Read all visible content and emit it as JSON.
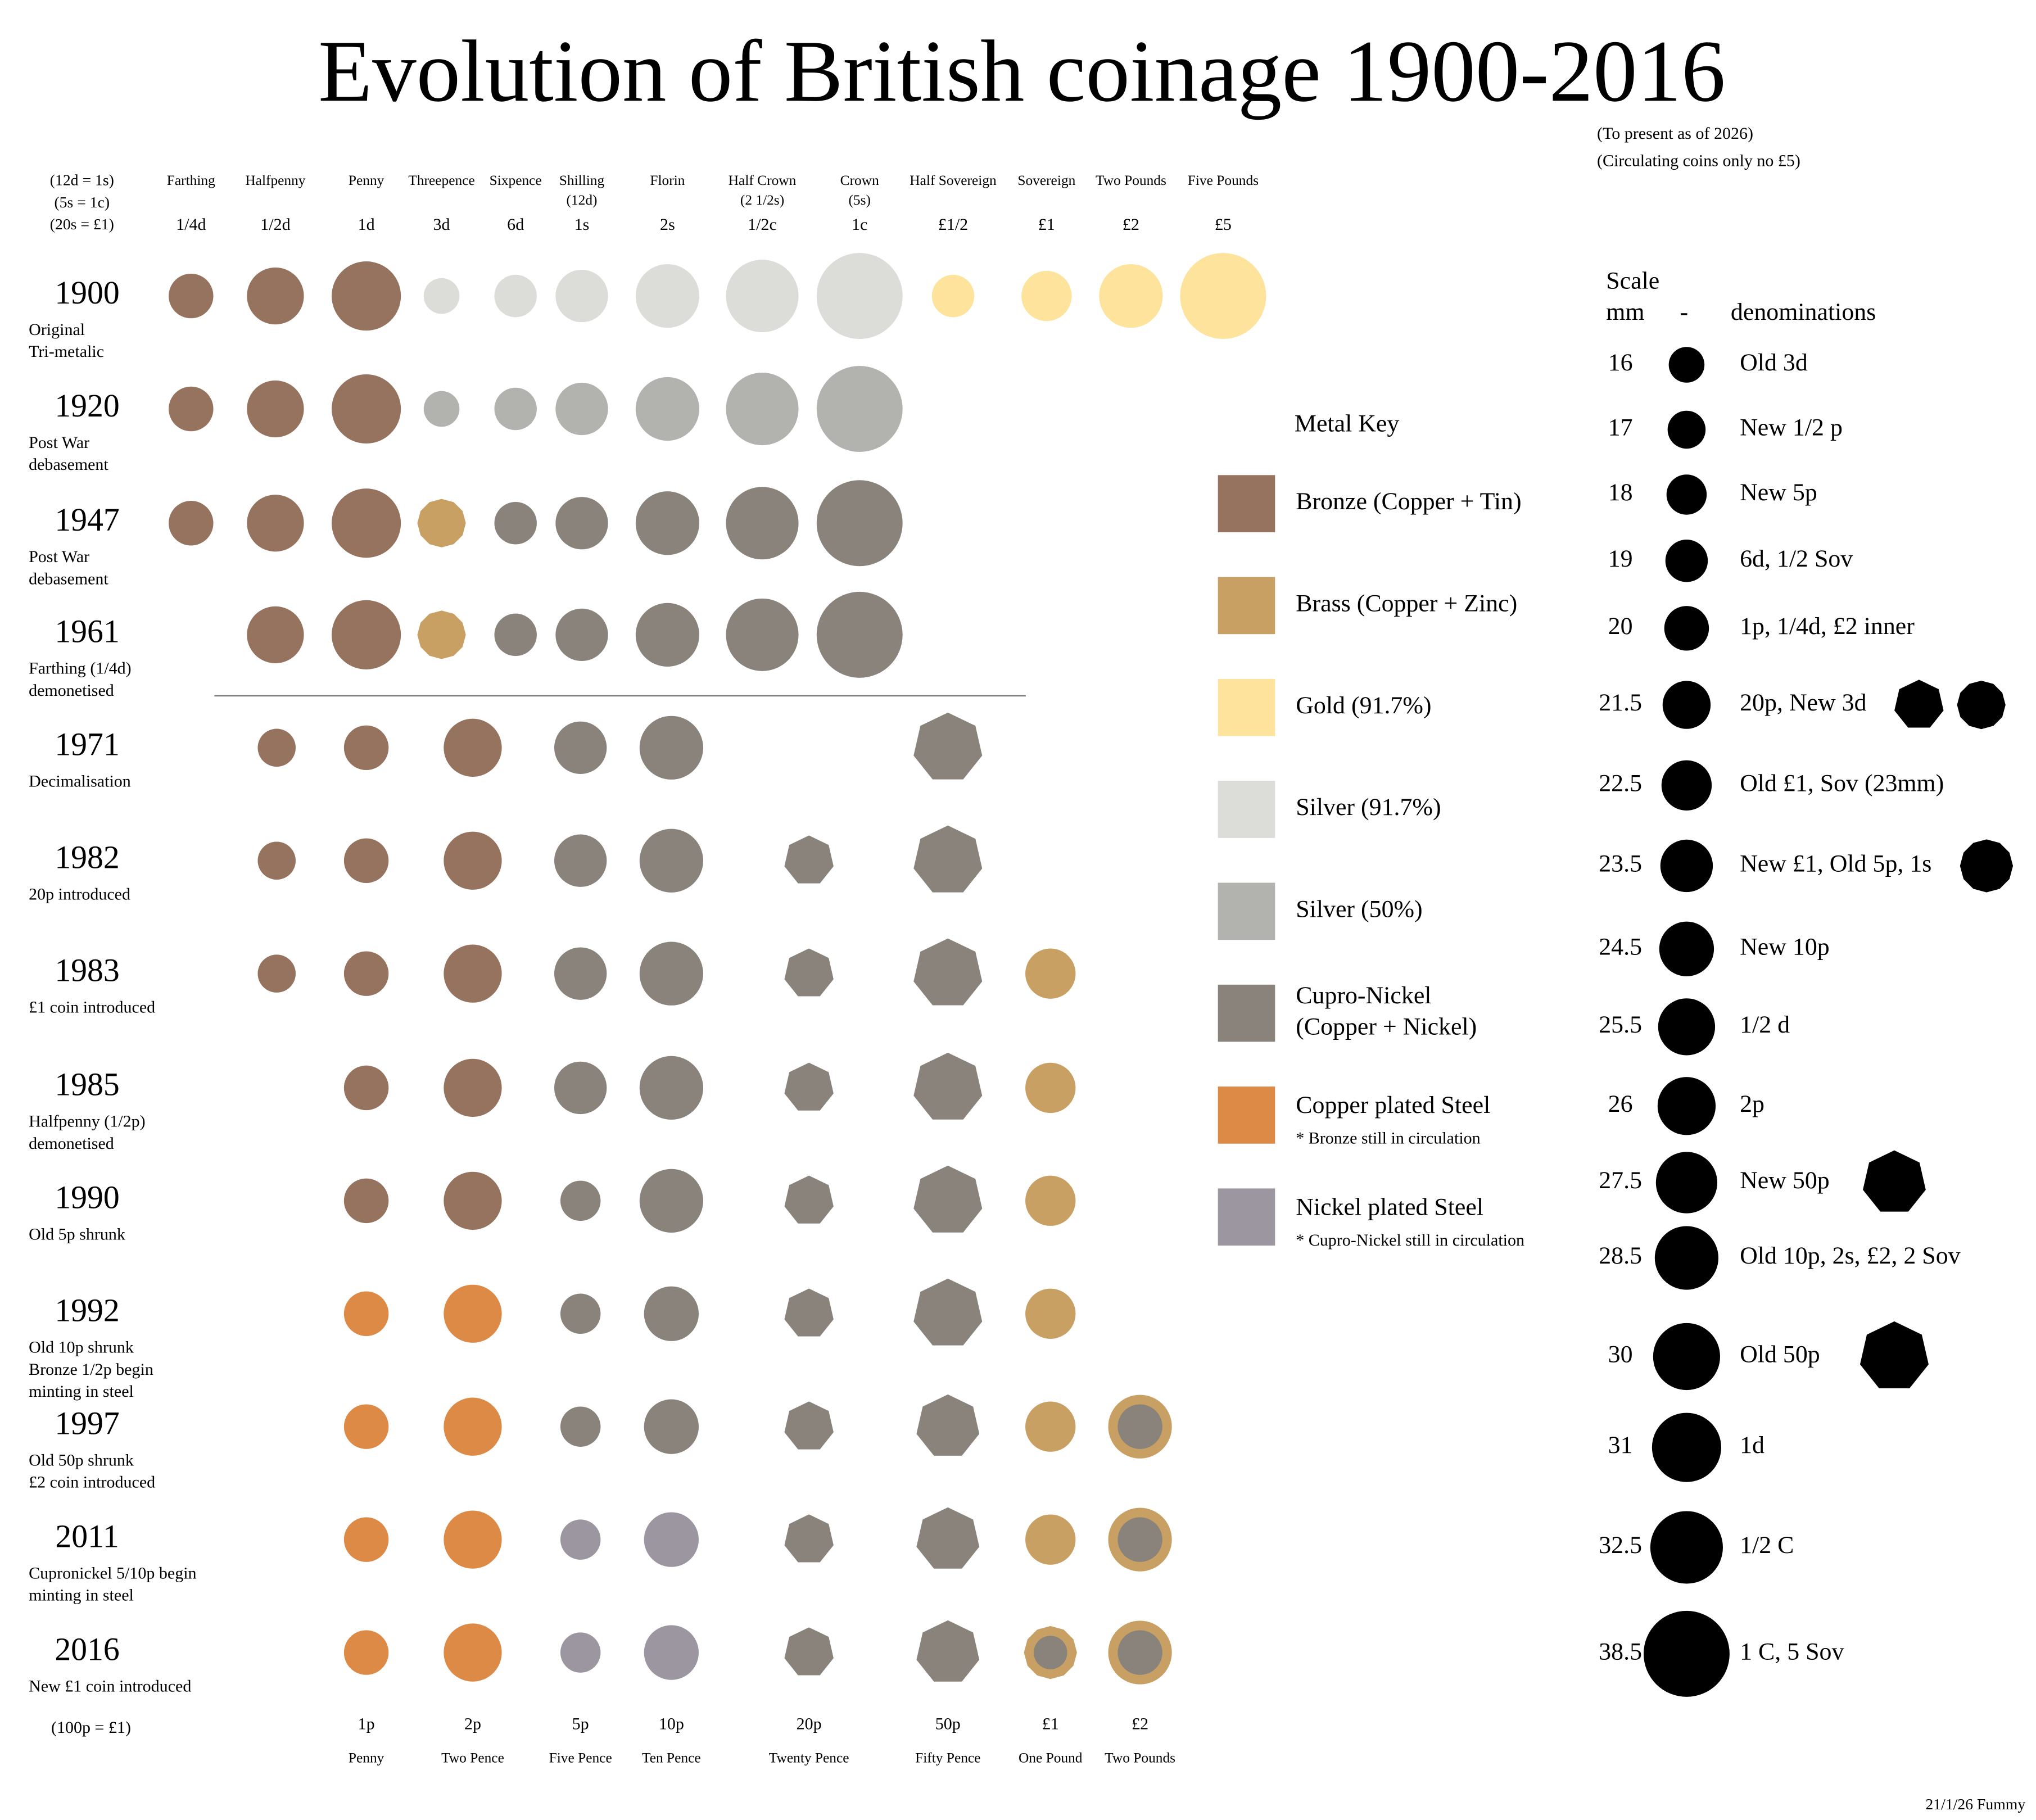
{
  "title": "Evolution of British coinage 1900-2016",
  "subnotes": [
    "(To present as of 2026)",
    "(Circulating coins only no £5)"
  ],
  "credit": "21/1/26 Fummy",
  "header_notes": [
    "(12d = 1s)",
    "(5s = 1c)",
    "(20s = £1)"
  ],
  "top_columns": [
    {
      "name": "Farthing",
      "denom": "1/4d"
    },
    {
      "name": "Halfpenny",
      "denom": "1/2d"
    },
    {
      "name": "Penny",
      "denom": "1d"
    },
    {
      "name": "Threepence",
      "denom": "3d"
    },
    {
      "name": "Sixpence",
      "denom": "6d"
    },
    {
      "name": "Shilling",
      "sub": "(12d)",
      "denom": "1s"
    },
    {
      "name": "Florin",
      "denom": "2s"
    },
    {
      "name": "Half Crown",
      "sub": "(2 1/2s)",
      "denom": "1/2c"
    },
    {
      "name": "Crown",
      "sub": "(5s)",
      "denom": "1c"
    },
    {
      "name": "Half Sovereign",
      "denom": "£1/2"
    },
    {
      "name": "Sovereign",
      "denom": "£1"
    },
    {
      "name": "Two Pounds",
      "denom": "£2"
    },
    {
      "name": "Five Pounds",
      "denom": "£5"
    }
  ],
  "bottom_note": "(100p = £1)",
  "bottom_columns": [
    {
      "denom": null,
      "name": null
    },
    {
      "denom": "1p",
      "name": "Penny"
    },
    {
      "denom": "2p",
      "name": "Two Pence"
    },
    {
      "denom": "5p",
      "name": "Five Pence"
    },
    {
      "denom": "10p",
      "name": "Ten Pence"
    },
    {
      "denom": "20p",
      "name": "Twenty Pence"
    },
    {
      "denom": "50p",
      "name": "Fifty Pence"
    },
    {
      "denom": "£1",
      "name": "One Pound"
    },
    {
      "denom": "£2",
      "name": "Two Pounds"
    }
  ],
  "rows": [
    {
      "year": "1900",
      "note": [
        "Original",
        "Tri-metalic"
      ],
      "coins": [
        {
          "d": 20,
          "color": "#96735e"
        },
        {
          "d": 25.5,
          "color": "#96735e"
        },
        {
          "d": 31,
          "color": "#96735e"
        },
        {
          "d": 16,
          "color": "#dcdcd8"
        },
        {
          "d": 19,
          "color": "#dcdcd8"
        },
        {
          "d": 23.5,
          "color": "#dcdcd8"
        },
        {
          "d": 28.5,
          "color": "#dcdcd8"
        },
        {
          "d": 32.5,
          "color": "#dcdcd8"
        },
        {
          "d": 38.5,
          "color": "#dcdcd8"
        },
        {
          "d": 19,
          "color": "#fde39b"
        },
        {
          "d": 22.5,
          "color": "#fde39b"
        },
        {
          "d": 28.5,
          "color": "#fde39b"
        },
        {
          "d": 38.5,
          "color": "#fde39b"
        }
      ]
    },
    {
      "year": "1920",
      "note": [
        "Post War",
        "debasement"
      ],
      "coins": [
        {
          "d": 20,
          "color": "#96735e"
        },
        {
          "d": 25.5,
          "color": "#96735e"
        },
        {
          "d": 31,
          "color": "#96735e"
        },
        {
          "d": 16,
          "color": "#b2b2af"
        },
        {
          "d": 19,
          "color": "#b2b2af"
        },
        {
          "d": 23.5,
          "color": "#b2b2af"
        },
        {
          "d": 28.5,
          "color": "#b2b2af"
        },
        {
          "d": 32.5,
          "color": "#b2b2af"
        },
        {
          "d": 38.5,
          "color": "#b2b2af"
        },
        null,
        null,
        null,
        null
      ]
    },
    {
      "year": "1947",
      "note": [
        "Post War",
        "debasement"
      ],
      "coins": [
        {
          "d": 20,
          "color": "#96735e"
        },
        {
          "d": 25.5,
          "color": "#96735e"
        },
        {
          "d": 31,
          "color": "#96735e"
        },
        {
          "d": 21.5,
          "color": "#c9a063",
          "shape": "dodecagon"
        },
        {
          "d": 19,
          "color": "#8a837c"
        },
        {
          "d": 23.5,
          "color": "#8a837c"
        },
        {
          "d": 28.5,
          "color": "#8a837c"
        },
        {
          "d": 32.5,
          "color": "#8a837c"
        },
        {
          "d": 38.5,
          "color": "#8a837c"
        },
        null,
        null,
        null,
        null
      ]
    },
    {
      "year": "1961",
      "note": [
        "Farthing (1/4d)",
        "demonetised"
      ],
      "coins": [
        null,
        {
          "d": 25.5,
          "color": "#96735e"
        },
        {
          "d": 31,
          "color": "#96735e"
        },
        {
          "d": 21.5,
          "color": "#c9a063",
          "shape": "dodecagon"
        },
        {
          "d": 19,
          "color": "#8a837c"
        },
        {
          "d": 23.5,
          "color": "#8a837c"
        },
        {
          "d": 28.5,
          "color": "#8a837c"
        },
        {
          "d": 32.5,
          "color": "#8a837c"
        },
        {
          "d": 38.5,
          "color": "#8a837c"
        },
        null,
        null,
        null,
        null
      ]
    },
    {
      "year": "1971",
      "note": [
        "Decimalisation"
      ],
      "coins": [
        {
          "d": 17,
          "color": "#96735e"
        },
        {
          "d": 20,
          "color": "#96735e"
        },
        {
          "d": 26,
          "color": "#96735e"
        },
        {
          "d": 23.5,
          "color": "#8a837c"
        },
        {
          "d": 28.5,
          "color": "#8a837c"
        },
        null,
        {
          "d": 30,
          "color": "#8a837c",
          "shape": "heptagon"
        },
        null,
        null
      ]
    },
    {
      "year": "1982",
      "note": [
        "20p introduced"
      ],
      "coins": [
        {
          "d": 17,
          "color": "#96735e"
        },
        {
          "d": 20,
          "color": "#96735e"
        },
        {
          "d": 26,
          "color": "#96735e"
        },
        {
          "d": 23.5,
          "color": "#8a837c"
        },
        {
          "d": 28.5,
          "color": "#8a837c"
        },
        {
          "d": 21.5,
          "color": "#8a837c",
          "shape": "heptagon"
        },
        {
          "d": 30,
          "color": "#8a837c",
          "shape": "heptagon"
        },
        null,
        null
      ]
    },
    {
      "year": "1983",
      "note": [
        "£1 coin introduced"
      ],
      "coins": [
        {
          "d": 17,
          "color": "#96735e"
        },
        {
          "d": 20,
          "color": "#96735e"
        },
        {
          "d": 26,
          "color": "#96735e"
        },
        {
          "d": 23.5,
          "color": "#8a837c"
        },
        {
          "d": 28.5,
          "color": "#8a837c"
        },
        {
          "d": 21.5,
          "color": "#8a837c",
          "shape": "heptagon"
        },
        {
          "d": 30,
          "color": "#8a837c",
          "shape": "heptagon"
        },
        {
          "d": 22.5,
          "color": "#c9a063"
        },
        null
      ]
    },
    {
      "year": "1985",
      "note": [
        "Halfpenny (1/2p)",
        "demonetised"
      ],
      "coins": [
        null,
        {
          "d": 20,
          "color": "#96735e"
        },
        {
          "d": 26,
          "color": "#96735e"
        },
        {
          "d": 23.5,
          "color": "#8a837c"
        },
        {
          "d": 28.5,
          "color": "#8a837c"
        },
        {
          "d": 21.5,
          "color": "#8a837c",
          "shape": "heptagon"
        },
        {
          "d": 30,
          "color": "#8a837c",
          "shape": "heptagon"
        },
        {
          "d": 22.5,
          "color": "#c9a063"
        },
        null
      ]
    },
    {
      "year": "1990",
      "note": [
        "Old 5p shrunk"
      ],
      "coins": [
        null,
        {
          "d": 20,
          "color": "#96735e"
        },
        {
          "d": 26,
          "color": "#96735e"
        },
        {
          "d": 18,
          "color": "#8a837c"
        },
        {
          "d": 28.5,
          "color": "#8a837c"
        },
        {
          "d": 21.5,
          "color": "#8a837c",
          "shape": "heptagon"
        },
        {
          "d": 30,
          "color": "#8a837c",
          "shape": "heptagon"
        },
        {
          "d": 22.5,
          "color": "#c9a063"
        },
        null
      ]
    },
    {
      "year": "1992",
      "note": [
        "Old 10p shrunk",
        "Bronze 1/2p begin",
        "minting in steel"
      ],
      "coins": [
        null,
        {
          "d": 20,
          "color": "#de8a47"
        },
        {
          "d": 26,
          "color": "#de8a47"
        },
        {
          "d": 18,
          "color": "#8a837c"
        },
        {
          "d": 24.5,
          "color": "#8a837c"
        },
        {
          "d": 21.5,
          "color": "#8a837c",
          "shape": "heptagon"
        },
        {
          "d": 30,
          "color": "#8a837c",
          "shape": "heptagon"
        },
        {
          "d": 22.5,
          "color": "#c9a063"
        },
        null
      ]
    },
    {
      "year": "1997",
      "note": [
        "Old 50p shrunk",
        "£2 coin introduced"
      ],
      "coins": [
        null,
        {
          "d": 20,
          "color": "#de8a47"
        },
        {
          "d": 26,
          "color": "#de8a47"
        },
        {
          "d": 18,
          "color": "#8a837c"
        },
        {
          "d": 24.5,
          "color": "#8a837c"
        },
        {
          "d": 21.5,
          "color": "#8a837c",
          "shape": "heptagon"
        },
        {
          "d": 27.5,
          "color": "#8a837c",
          "shape": "heptagon"
        },
        {
          "d": 22.5,
          "color": "#c9a063"
        },
        {
          "d": 28.5,
          "color": "#c9a063",
          "inner": {
            "d": 20,
            "color": "#8a837c"
          }
        }
      ]
    },
    {
      "year": "2011",
      "note": [
        "Cupronickel 5/10p begin",
        "minting in steel"
      ],
      "coins": [
        null,
        {
          "d": 20,
          "color": "#de8a47"
        },
        {
          "d": 26,
          "color": "#de8a47"
        },
        {
          "d": 18,
          "color": "#9c96a0"
        },
        {
          "d": 24.5,
          "color": "#9c96a0"
        },
        {
          "d": 21.5,
          "color": "#8a837c",
          "shape": "heptagon"
        },
        {
          "d": 27.5,
          "color": "#8a837c",
          "shape": "heptagon"
        },
        {
          "d": 22.5,
          "color": "#c9a063"
        },
        {
          "d": 28.5,
          "color": "#c9a063",
          "inner": {
            "d": 20,
            "color": "#8a837c"
          }
        }
      ]
    },
    {
      "year": "2016",
      "note": [
        "New £1 coin introduced"
      ],
      "coins": [
        null,
        {
          "d": 20,
          "color": "#de8a47"
        },
        {
          "d": 26,
          "color": "#de8a47"
        },
        {
          "d": 18,
          "color": "#9c96a0"
        },
        {
          "d": 24.5,
          "color": "#9c96a0"
        },
        {
          "d": 21.5,
          "color": "#8a837c",
          "shape": "heptagon"
        },
        {
          "d": 27.5,
          "color": "#8a837c",
          "shape": "heptagon"
        },
        {
          "d": 23.5,
          "color": "#c9a063",
          "shape": "dodecagon",
          "inner": {
            "d": 15,
            "color": "#8a837c"
          }
        },
        {
          "d": 28.5,
          "color": "#c9a063",
          "inner": {
            "d": 20,
            "color": "#8a837c"
          }
        }
      ]
    }
  ],
  "metal_key": {
    "title": "Metal Key",
    "items": [
      {
        "label": [
          "Bronze (Copper + Tin)"
        ],
        "color": "#96735e"
      },
      {
        "label": [
          "Brass (Copper + Zinc)"
        ],
        "color": "#c9a063"
      },
      {
        "label": [
          "Gold (91.7%)"
        ],
        "color": "#fde39b"
      },
      {
        "label": [
          "Silver (91.7%)"
        ],
        "color": "#dcdcd8"
      },
      {
        "label": [
          "Silver (50%)"
        ],
        "color": "#b2b2af"
      },
      {
        "label": [
          "Cupro-Nickel",
          "(Copper + Nickel)"
        ],
        "color": "#8a837c"
      },
      {
        "label": [
          "Copper plated Steel"
        ],
        "note": "* Bronze still in circulation",
        "color": "#de8a47"
      },
      {
        "label": [
          "Nickel plated Steel"
        ],
        "note": "* Cupro-Nickel still in circulation",
        "color": "#9c96a0"
      }
    ]
  },
  "scale": {
    "title": "Scale",
    "headers": [
      "mm",
      "-",
      "denominations"
    ],
    "rows": [
      {
        "mm": 16,
        "label": "Old 3d"
      },
      {
        "mm": 17,
        "label": "New 1/2 p"
      },
      {
        "mm": 18,
        "label": "New 5p"
      },
      {
        "mm": 19,
        "label": "6d, 1/2 Sov"
      },
      {
        "mm": 20,
        "label": "1p, 1/4d, £2 inner"
      },
      {
        "mm": 21.5,
        "label": "20p, New 3d",
        "extras": [
          "heptagon",
          "dodecagon"
        ]
      },
      {
        "mm": 22.5,
        "label": "Old £1, Sov (23mm)"
      },
      {
        "mm": 23.5,
        "label": "New £1, Old 5p, 1s",
        "extras": [
          "dodecagon"
        ]
      },
      {
        "mm": 24.5,
        "label": "New 10p"
      },
      {
        "mm": 25.5,
        "label": "1/2 d"
      },
      {
        "mm": 26,
        "label": "2p"
      },
      {
        "mm": 27.5,
        "label": "New 50p",
        "extras": [
          "heptagon"
        ]
      },
      {
        "mm": 28.5,
        "label": "Old 10p, 2s, £2, 2 Sov"
      },
      {
        "mm": 30,
        "label": "Old 50p",
        "extras": [
          "heptagon"
        ]
      },
      {
        "mm": 31,
        "label": "1d"
      },
      {
        "mm": 32.5,
        "label": "1/2 C"
      },
      {
        "mm": 38.5,
        "label": "1 C, 5 Sov"
      }
    ]
  }
}
